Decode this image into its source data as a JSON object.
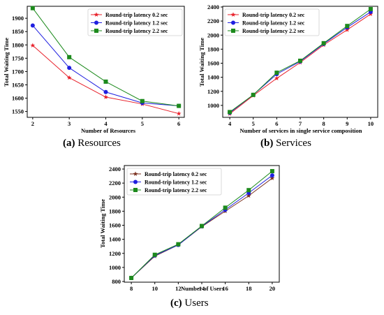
{
  "chart_data": [
    {
      "type": "line",
      "caption_letter": "(a)",
      "caption_text": "Resources",
      "xlabel": "Number of Resources",
      "ylabel": "Total Waiting Time",
      "x": [
        2,
        3,
        4,
        5,
        6
      ],
      "xticks": [
        2,
        3,
        4,
        5,
        6
      ],
      "yticks": [
        1550,
        1600,
        1650,
        1700,
        1750,
        1800,
        1850,
        1900
      ],
      "xlim": [
        1.85,
        6.15
      ],
      "ylim": [
        1528,
        1945
      ],
      "grid": false,
      "legend": "top-right",
      "series": [
        {
          "name": "Round-trip latency 0.2 sec",
          "color": "#e8202a",
          "marker": "star",
          "values": [
            1798,
            1677,
            1604,
            1578,
            1542
          ]
        },
        {
          "name": "Round-trip latency 1.2 sec",
          "color": "#1f1fe0",
          "marker": "circle",
          "values": [
            1873,
            1714,
            1623,
            1582,
            1571
          ]
        },
        {
          "name": "Round-trip latency 2.2 sec",
          "color": "#1c8a1c",
          "marker": "square",
          "values": [
            1938,
            1754,
            1662,
            1589,
            1571
          ]
        }
      ]
    },
    {
      "type": "line",
      "caption_letter": "(b)",
      "caption_text": "Services",
      "xlabel": "Number of services in single service composition",
      "ylabel": "Total Waiting Time",
      "x": [
        4,
        5,
        6,
        7,
        8,
        9,
        10
      ],
      "xticks": [
        4,
        5,
        6,
        7,
        8,
        9,
        10
      ],
      "yticks": [
        1000,
        1200,
        1400,
        1600,
        1800,
        2000,
        2200,
        2400
      ],
      "xlim": [
        3.7,
        10.3
      ],
      "ylim": [
        830,
        2410
      ],
      "grid": false,
      "legend": "top-left",
      "series": [
        {
          "name": "Round-trip latency 0.2 sec",
          "color": "#e8202a",
          "marker": "star",
          "values": [
            880,
            1140,
            1385,
            1610,
            1860,
            2075,
            2300
          ]
        },
        {
          "name": "Round-trip latency 1.2 sec",
          "color": "#1f1fe0",
          "marker": "circle",
          "values": [
            895,
            1150,
            1445,
            1625,
            1875,
            2110,
            2330
          ]
        },
        {
          "name": "Round-trip latency 2.2 sec",
          "color": "#1c8a1c",
          "marker": "square",
          "values": [
            905,
            1150,
            1465,
            1635,
            1885,
            2130,
            2370
          ]
        }
      ]
    },
    {
      "type": "line",
      "caption_letter": "(c)",
      "caption_text": "Users",
      "xlabel": "Number of Users",
      "ylabel": "Total Waiting Time",
      "x": [
        8,
        10,
        12,
        14,
        16,
        18,
        20
      ],
      "xticks": [
        8,
        10,
        12,
        14,
        16,
        18,
        20
      ],
      "yticks": [
        800,
        1000,
        1200,
        1400,
        1600,
        1800,
        2000,
        2200,
        2400
      ],
      "xlim": [
        7.4,
        20.6
      ],
      "ylim": [
        790,
        2450
      ],
      "grid": false,
      "legend": "top-left",
      "series": [
        {
          "name": "Round-trip latency 0.2 sec",
          "color": "#7a2f1e",
          "marker": "star",
          "values": [
            850,
            1160,
            1320,
            1580,
            1800,
            2020,
            2270
          ]
        },
        {
          "name": "Round-trip latency 1.2 sec",
          "color": "#1f1fe0",
          "marker": "circle",
          "values": [
            850,
            1170,
            1320,
            1585,
            1820,
            2060,
            2310
          ]
        },
        {
          "name": "Round-trip latency 2.2 sec",
          "color": "#1c8a1c",
          "marker": "square",
          "values": [
            850,
            1180,
            1330,
            1590,
            1850,
            2100,
            2370
          ]
        }
      ]
    }
  ]
}
